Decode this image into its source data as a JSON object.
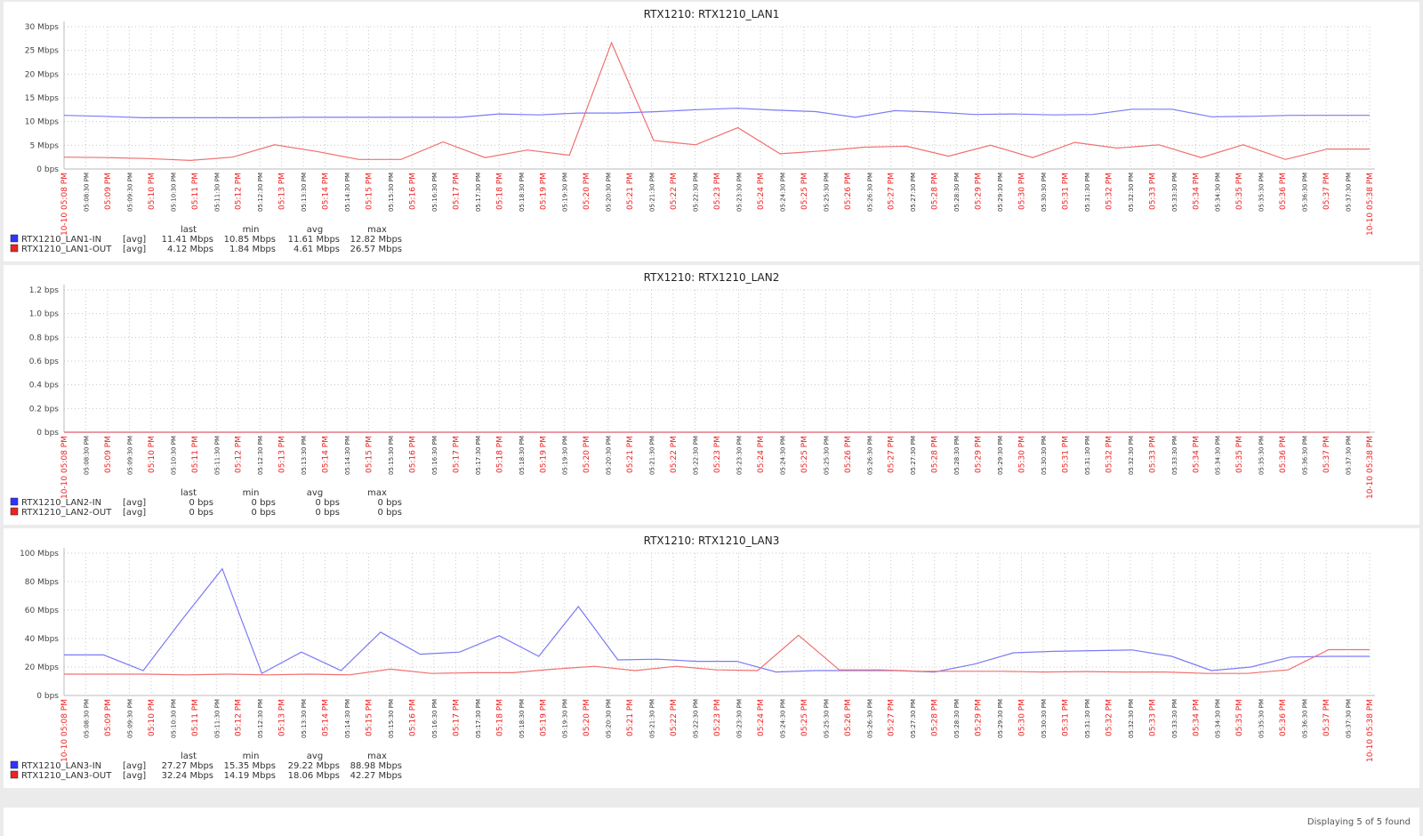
{
  "footer": {
    "text": "Displaying 5 of 5 found"
  },
  "legend_headers": [
    "last",
    "min",
    "avg",
    "max"
  ],
  "legend_func": "[avg]",
  "colors": {
    "in": "#3333ff",
    "in_line": "#7b7bf7",
    "out": "#ee2222",
    "out_line": "#f07070",
    "grid": "#c8c8c8",
    "axis_text": "#444444",
    "red_label": "#ee2222"
  },
  "time_labels": [
    "10-10 05:08 PM",
    "05:08:30 PM",
    "05:09 PM",
    "05:09:30 PM",
    "05:10 PM",
    "05:10:30 PM",
    "05:11 PM",
    "05:11:30 PM",
    "05:12 PM",
    "05:12:30 PM",
    "05:13 PM",
    "05:13:30 PM",
    "05:14 PM",
    "05:14:30 PM",
    "05:15 PM",
    "05:15:30 PM",
    "05:16 PM",
    "05:16:30 PM",
    "05:17 PM",
    "05:17:30 PM",
    "05:18 PM",
    "05:18:30 PM",
    "05:19 PM",
    "05:19:30 PM",
    "05:20 PM",
    "05:20:30 PM",
    "05:21 PM",
    "05:21:30 PM",
    "05:22 PM",
    "05:22:30 PM",
    "05:23 PM",
    "05:23:30 PM",
    "05:24 PM",
    "05:24:30 PM",
    "05:25 PM",
    "05:25:30 PM",
    "05:26 PM",
    "05:26:30 PM",
    "05:27 PM",
    "05:27:30 PM",
    "05:28 PM",
    "05:28:30 PM",
    "05:29 PM",
    "05:29:30 PM",
    "05:30 PM",
    "05:30:30 PM",
    "05:31 PM",
    "05:31:30 PM",
    "05:32 PM",
    "05:32:30 PM",
    "05:33 PM",
    "05:33:30 PM",
    "05:34 PM",
    "05:34:30 PM",
    "05:35 PM",
    "05:35:30 PM",
    "05:36 PM",
    "05:36:30 PM",
    "05:37 PM",
    "05:37:30 PM",
    "10-10 05:38 PM"
  ],
  "chart_data": [
    {
      "type": "line",
      "title": "RTX1210: RTX1210_LAN1",
      "yticks": [
        "0 bps",
        "5 Mbps",
        "10 Mbps",
        "15 Mbps",
        "20 Mbps",
        "25 Mbps",
        "30 Mbps"
      ],
      "ylim": [
        0,
        30
      ],
      "unit": "Mbps",
      "series": [
        {
          "name": "RTX1210_LAN1-IN",
          "color": "#3333ff",
          "stats": [
            "11.41 Mbps",
            "10.85 Mbps",
            "11.61 Mbps",
            "12.82 Mbps"
          ],
          "values": [
            11.3,
            11.1,
            10.8,
            10.8,
            10.8,
            10.8,
            10.9,
            10.9,
            10.9,
            10.9,
            10.9,
            11.6,
            11.4,
            11.8,
            11.8,
            12.1,
            12.5,
            12.8,
            12.4,
            12.1,
            10.9,
            12.3,
            12.0,
            11.5,
            11.6,
            11.4,
            11.5,
            12.6,
            12.6,
            11.0,
            11.1,
            11.3,
            11.3,
            11.3
          ]
        },
        {
          "name": "RTX1210_LAN1-OUT",
          "color": "#ee2222",
          "stats": [
            "4.12 Mbps",
            "1.84 Mbps",
            "4.61 Mbps",
            "26.57 Mbps"
          ],
          "values": [
            2.5,
            2.4,
            2.2,
            1.8,
            2.5,
            5.1,
            3.7,
            2.0,
            2.0,
            5.7,
            2.4,
            4.0,
            2.9,
            26.6,
            6.0,
            5.1,
            8.7,
            3.2,
            3.8,
            4.6,
            4.8,
            2.7,
            5.0,
            2.4,
            5.6,
            4.4,
            5.1,
            2.4,
            5.1,
            2.0,
            4.2,
            4.2
          ]
        }
      ]
    },
    {
      "type": "line",
      "title": "RTX1210: RTX1210_LAN2",
      "yticks": [
        "0 bps",
        "0.2 bps",
        "0.4 bps",
        "0.6 bps",
        "0.8 bps",
        "1.0 bps",
        "1.2 bps"
      ],
      "ylim": [
        0,
        1.2
      ],
      "unit": "bps",
      "series": [
        {
          "name": "RTX1210_LAN2-IN",
          "color": "#3333ff",
          "stats": [
            "0 bps",
            "0 bps",
            "0 bps",
            "0 bps"
          ],
          "values": [
            0,
            0
          ]
        },
        {
          "name": "RTX1210_LAN2-OUT",
          "color": "#ee2222",
          "stats": [
            "0 bps",
            "0 bps",
            "0 bps",
            "0 bps"
          ],
          "values": [
            0,
            0
          ]
        }
      ]
    },
    {
      "type": "line",
      "title": "RTX1210: RTX1210_LAN3",
      "yticks": [
        "0 bps",
        "20 Mbps",
        "40 Mbps",
        "60 Mbps",
        "80 Mbps",
        "100 Mbps"
      ],
      "ylim": [
        0,
        100
      ],
      "unit": "Mbps",
      "series": [
        {
          "name": "RTX1210_LAN3-IN",
          "color": "#3333ff",
          "stats": [
            "27.27 Mbps",
            "15.35 Mbps",
            "29.22 Mbps",
            "88.98 Mbps"
          ],
          "values": [
            28.5,
            28.5,
            17.5,
            54,
            89,
            15.5,
            30.5,
            17.5,
            44.5,
            29,
            30.5,
            42,
            27.5,
            62.5,
            25,
            25.5,
            24,
            24,
            16.5,
            17.5,
            17.5,
            17.5,
            16.5,
            22,
            30,
            31,
            31.5,
            32,
            27.5,
            17.5,
            20,
            27,
            27.5,
            27.5
          ]
        },
        {
          "name": "RTX1210_LAN3-OUT",
          "color": "#ee2222",
          "stats": [
            "32.24 Mbps",
            "14.19 Mbps",
            "18.06 Mbps",
            "42.27 Mbps"
          ],
          "values": [
            15,
            15,
            15,
            14.5,
            15,
            14.5,
            15,
            14.5,
            18.5,
            15.5,
            16,
            16,
            18.5,
            20.5,
            17.5,
            20.5,
            18,
            17.5,
            42.3,
            18,
            18,
            17,
            17,
            17,
            16.5,
            16.8,
            16.5,
            16.5,
            15.5,
            15.5,
            18,
            32.2,
            32.2
          ]
        }
      ]
    }
  ]
}
